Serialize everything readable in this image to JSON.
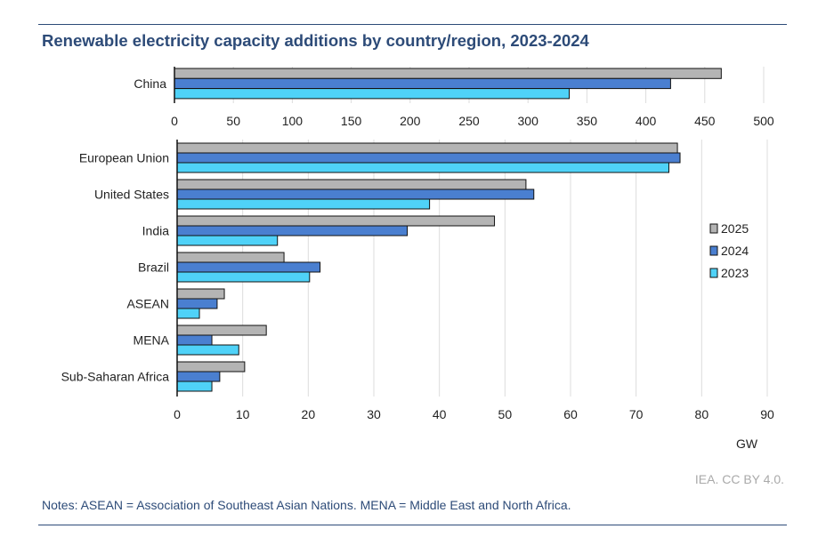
{
  "chart_data": [
    {
      "type": "bar",
      "orientation": "horizontal",
      "title": "Renewable electricity capacity additions by country/region, 2023-2024",
      "categories": [
        "China"
      ],
      "series": [
        {
          "name": "2025",
          "values": [
            464
          ],
          "color": "#b4b4b4"
        },
        {
          "name": "2024",
          "values": [
            421
          ],
          "color": "#4a7fd0"
        },
        {
          "name": "2023",
          "values": [
            335
          ],
          "color": "#4fd2f8"
        }
      ],
      "xlim": [
        0,
        500
      ],
      "xticks": [
        "0",
        "50",
        "100",
        "150",
        "200",
        "250",
        "300",
        "350",
        "400",
        "450",
        "500"
      ],
      "grid": true
    },
    {
      "type": "bar",
      "orientation": "horizontal",
      "categories": [
        "European Union",
        "United States",
        "India",
        "Brazil",
        "ASEAN",
        "MENA",
        "Sub-Saharan Africa"
      ],
      "series": [
        {
          "name": "2025",
          "values": [
            76.3,
            53.2,
            48.4,
            16.3,
            7.2,
            13.6,
            10.3
          ],
          "color": "#b4b4b4"
        },
        {
          "name": "2024",
          "values": [
            76.7,
            54.4,
            35.1,
            21.8,
            6.1,
            5.3,
            6.5
          ],
          "color": "#4a7fd0"
        },
        {
          "name": "2023",
          "values": [
            75.0,
            38.5,
            15.3,
            20.2,
            3.4,
            9.4,
            5.3
          ],
          "color": "#4fd2f8"
        }
      ],
      "xlim": [
        0,
        90
      ],
      "xticks": [
        "0",
        "10",
        "20",
        "30",
        "40",
        "50",
        "60",
        "70",
        "80",
        "90"
      ],
      "xlabel": "GW",
      "legend": [
        "2025",
        "2024",
        "2023"
      ],
      "legend_placement": "right",
      "grid": true
    }
  ],
  "source": "IEA. CC BY 4.0.",
  "notes": "Notes: ASEAN = Association of Southeast Asian Nations. MENA = Middle East and North Africa."
}
